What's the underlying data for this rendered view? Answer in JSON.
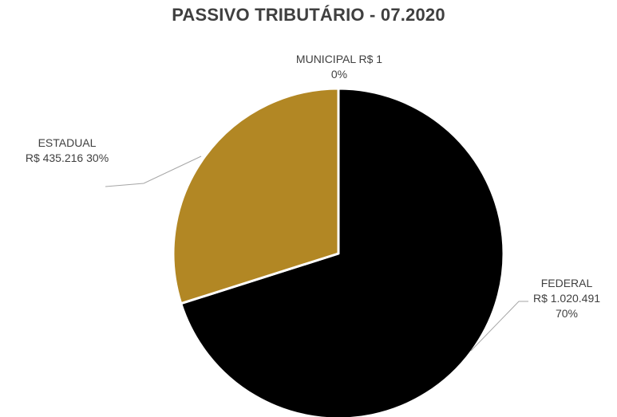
{
  "chart_data": {
    "type": "pie",
    "title": "PASSIVO TRIBUTÁRIO - 07.2020",
    "slices": [
      {
        "name": "MUNICIPAL",
        "value_label": "R$ 1",
        "value": 1,
        "percent_label": "0%",
        "color": "#000000"
      },
      {
        "name": "FEDERAL",
        "value_label": "R$ 1.020.491",
        "value": 1020491,
        "percent_label": "70%",
        "color": "#000000"
      },
      {
        "name": "ESTADUAL",
        "value_label": "R$ 435.216",
        "value": 435216,
        "percent_label": "30%",
        "color": "#b28724"
      }
    ],
    "start": "12 o'clock",
    "direction": "clockwise",
    "legend": "none",
    "data_labels": "outside with leader lines"
  }
}
